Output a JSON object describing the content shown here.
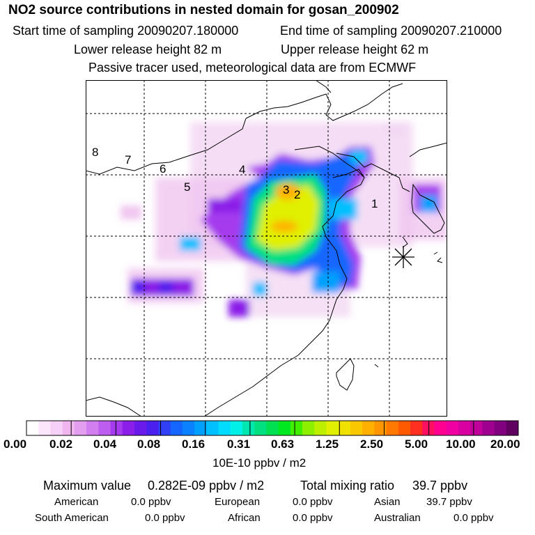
{
  "header": {
    "title": "NO2 source contributions in nested domain for gosan_200902",
    "start_time": "Start time of sampling 20090207.180000",
    "end_time": "End time of sampling 20090207.210000",
    "lower_release": "Lower release height   82 m",
    "upper_release": "Upper release height   62 m",
    "note": "Passive tracer used, meteorological data are from ECMWF"
  },
  "map": {
    "region_labels": [
      "1",
      "2",
      "3",
      "4",
      "5",
      "6",
      "7",
      "8"
    ],
    "receptor_marker": "asterisk-icon"
  },
  "colorbar": {
    "ticks": [
      "0.00",
      "0.02",
      "0.04",
      "0.08",
      "0.16",
      "0.31",
      "0.63",
      "1.25",
      "2.50",
      "5.00",
      "10.00",
      "20.00"
    ],
    "unit": "10E-10 ppbv / m2",
    "colors": [
      "#ffffff",
      "#fbe6fb",
      "#f6d0f6",
      "#f0b6f0",
      "#e49ef0",
      "#d07ef0",
      "#bd5ef0",
      "#a63aee",
      "#8b1ee8",
      "#6a1aea",
      "#4a20ee",
      "#3040f5",
      "#1466ff",
      "#0a82ff",
      "#00a0ff",
      "#00c0ff",
      "#00dcff",
      "#00f0e8",
      "#00e8b0",
      "#00e080",
      "#00e050",
      "#00e820",
      "#40ee00",
      "#8cf000",
      "#bcf000",
      "#e0f000",
      "#f0e000",
      "#f8c800",
      "#ffb000",
      "#ff9600",
      "#ff7800",
      "#ff5a00",
      "#ff3020",
      "#ff1060",
      "#ff0090",
      "#f000a0",
      "#d800a0",
      "#c0009a",
      "#a00090",
      "#800080",
      "#600060"
    ]
  },
  "stats": {
    "max_label": "Maximum value",
    "max_value": "0.282E-09 ppbv / m2",
    "total_label": "Total mixing ratio",
    "total_value": "39.7 ppbv",
    "regions": [
      {
        "name": "American",
        "value": "0.0 ppbv"
      },
      {
        "name": "European",
        "value": "0.0 ppbv"
      },
      {
        "name": "Asian",
        "value": "39.7 ppbv"
      },
      {
        "name": "South American",
        "value": "0.0 ppbv"
      },
      {
        "name": "African",
        "value": "0.0 ppbv"
      },
      {
        "name": "Australian",
        "value": "0.0 ppbv"
      }
    ]
  }
}
